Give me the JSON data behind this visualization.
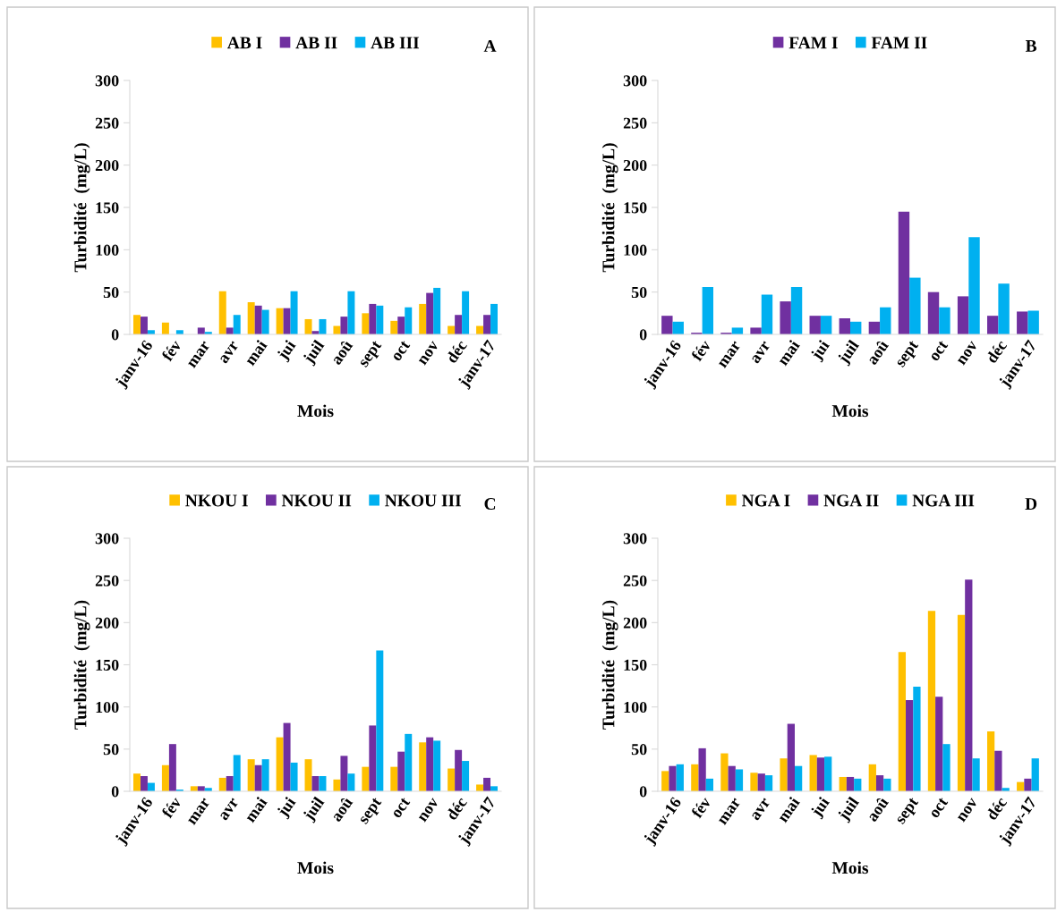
{
  "chart_data": [
    {
      "type": "bar",
      "xlabel": "Mois",
      "ylabel": "Turbidité  (mg/L)",
      "annotations": [
        "A"
      ],
      "legend": "top",
      "grid": false,
      "ylim": [
        0,
        300
      ],
      "yticks": [
        0,
        50,
        100,
        150,
        200,
        250,
        300
      ],
      "categories": [
        "janv-16",
        "fév",
        "mar",
        "avr",
        "mai",
        "jui",
        "juil",
        "aoû",
        "sept",
        "oct",
        "nov",
        "déc",
        "janv-17"
      ],
      "series": [
        {
          "name": "AB I",
          "color": "#ffc000",
          "values": [
            23,
            14,
            0,
            51,
            38,
            31,
            18,
            10,
            25,
            16,
            36,
            10,
            10
          ]
        },
        {
          "name": "AB II",
          "color": "#7030a0",
          "values": [
            21,
            0,
            8,
            8,
            34,
            31,
            4,
            21,
            36,
            21,
            49,
            23,
            23
          ]
        },
        {
          "name": "AB III",
          "color": "#00b0f0",
          "values": [
            5,
            5,
            3,
            23,
            29,
            51,
            18,
            51,
            34,
            32,
            55,
            51,
            36
          ]
        }
      ]
    },
    {
      "type": "bar",
      "xlabel": "Mois",
      "ylabel": "Turbidité  (mg/L)",
      "annotations": [
        "B"
      ],
      "legend": "top",
      "grid": false,
      "ylim": [
        0,
        300
      ],
      "yticks": [
        0,
        50,
        100,
        150,
        200,
        250,
        300
      ],
      "categories": [
        "janv-16",
        "fév",
        "mar",
        "avr",
        "mai",
        "jui",
        "juil",
        "aoû",
        "sept",
        "oct",
        "nov",
        "déc",
        "janv-17"
      ],
      "series": [
        {
          "name": "FAM I",
          "color": "#7030a0",
          "values": [
            22,
            2,
            2,
            8,
            39,
            22,
            19,
            15,
            145,
            50,
            45,
            22,
            27
          ]
        },
        {
          "name": "FAM II",
          "color": "#00b0f0",
          "values": [
            15,
            56,
            8,
            47,
            56,
            22,
            15,
            32,
            67,
            32,
            115,
            60,
            28
          ]
        }
      ]
    },
    {
      "type": "bar",
      "xlabel": "Mois",
      "ylabel": "Turbidité  (mg/L)",
      "annotations": [
        "C"
      ],
      "legend": "top",
      "grid": false,
      "ylim": [
        0,
        300
      ],
      "yticks": [
        0,
        50,
        100,
        150,
        200,
        250,
        300
      ],
      "categories": [
        "janv-16",
        "fév",
        "mar",
        "avr",
        "mai",
        "jui",
        "juil",
        "aoû",
        "sept",
        "oct",
        "nov",
        "déc",
        "janv-17"
      ],
      "series": [
        {
          "name": "NKOU I",
          "color": "#ffc000",
          "values": [
            21,
            31,
            6,
            16,
            38,
            64,
            38,
            14,
            29,
            29,
            58,
            27,
            8
          ]
        },
        {
          "name": "NKOU II",
          "color": "#7030a0",
          "values": [
            18,
            56,
            6,
            18,
            31,
            81,
            18,
            42,
            78,
            47,
            64,
            49,
            16
          ]
        },
        {
          "name": "NKOU III",
          "color": "#00b0f0",
          "values": [
            10,
            2,
            4,
            43,
            38,
            34,
            18,
            21,
            167,
            68,
            60,
            36,
            6
          ]
        }
      ]
    },
    {
      "type": "bar",
      "xlabel": "Mois",
      "ylabel": "Turbidité  (mg/L)",
      "annotations": [
        "D"
      ],
      "legend": "top",
      "grid": false,
      "ylim": [
        0,
        300
      ],
      "yticks": [
        0,
        50,
        100,
        150,
        200,
        250,
        300
      ],
      "categories": [
        "janv-16",
        "fév",
        "mar",
        "avr",
        "mai",
        "jui",
        "juil",
        "aoû",
        "sept",
        "oct",
        "nov",
        "déc",
        "janv-17"
      ],
      "series": [
        {
          "name": "NGA I",
          "color": "#ffc000",
          "values": [
            24,
            32,
            45,
            22,
            39,
            43,
            17,
            32,
            165,
            214,
            209,
            71,
            11
          ]
        },
        {
          "name": "NGA II",
          "color": "#7030a0",
          "values": [
            30,
            51,
            30,
            21,
            80,
            40,
            17,
            19,
            108,
            112,
            251,
            48,
            15
          ]
        },
        {
          "name": "NGA III",
          "color": "#00b0f0",
          "values": [
            32,
            15,
            26,
            19,
            30,
            41,
            15,
            15,
            124,
            56,
            39,
            4,
            39
          ]
        }
      ]
    }
  ]
}
